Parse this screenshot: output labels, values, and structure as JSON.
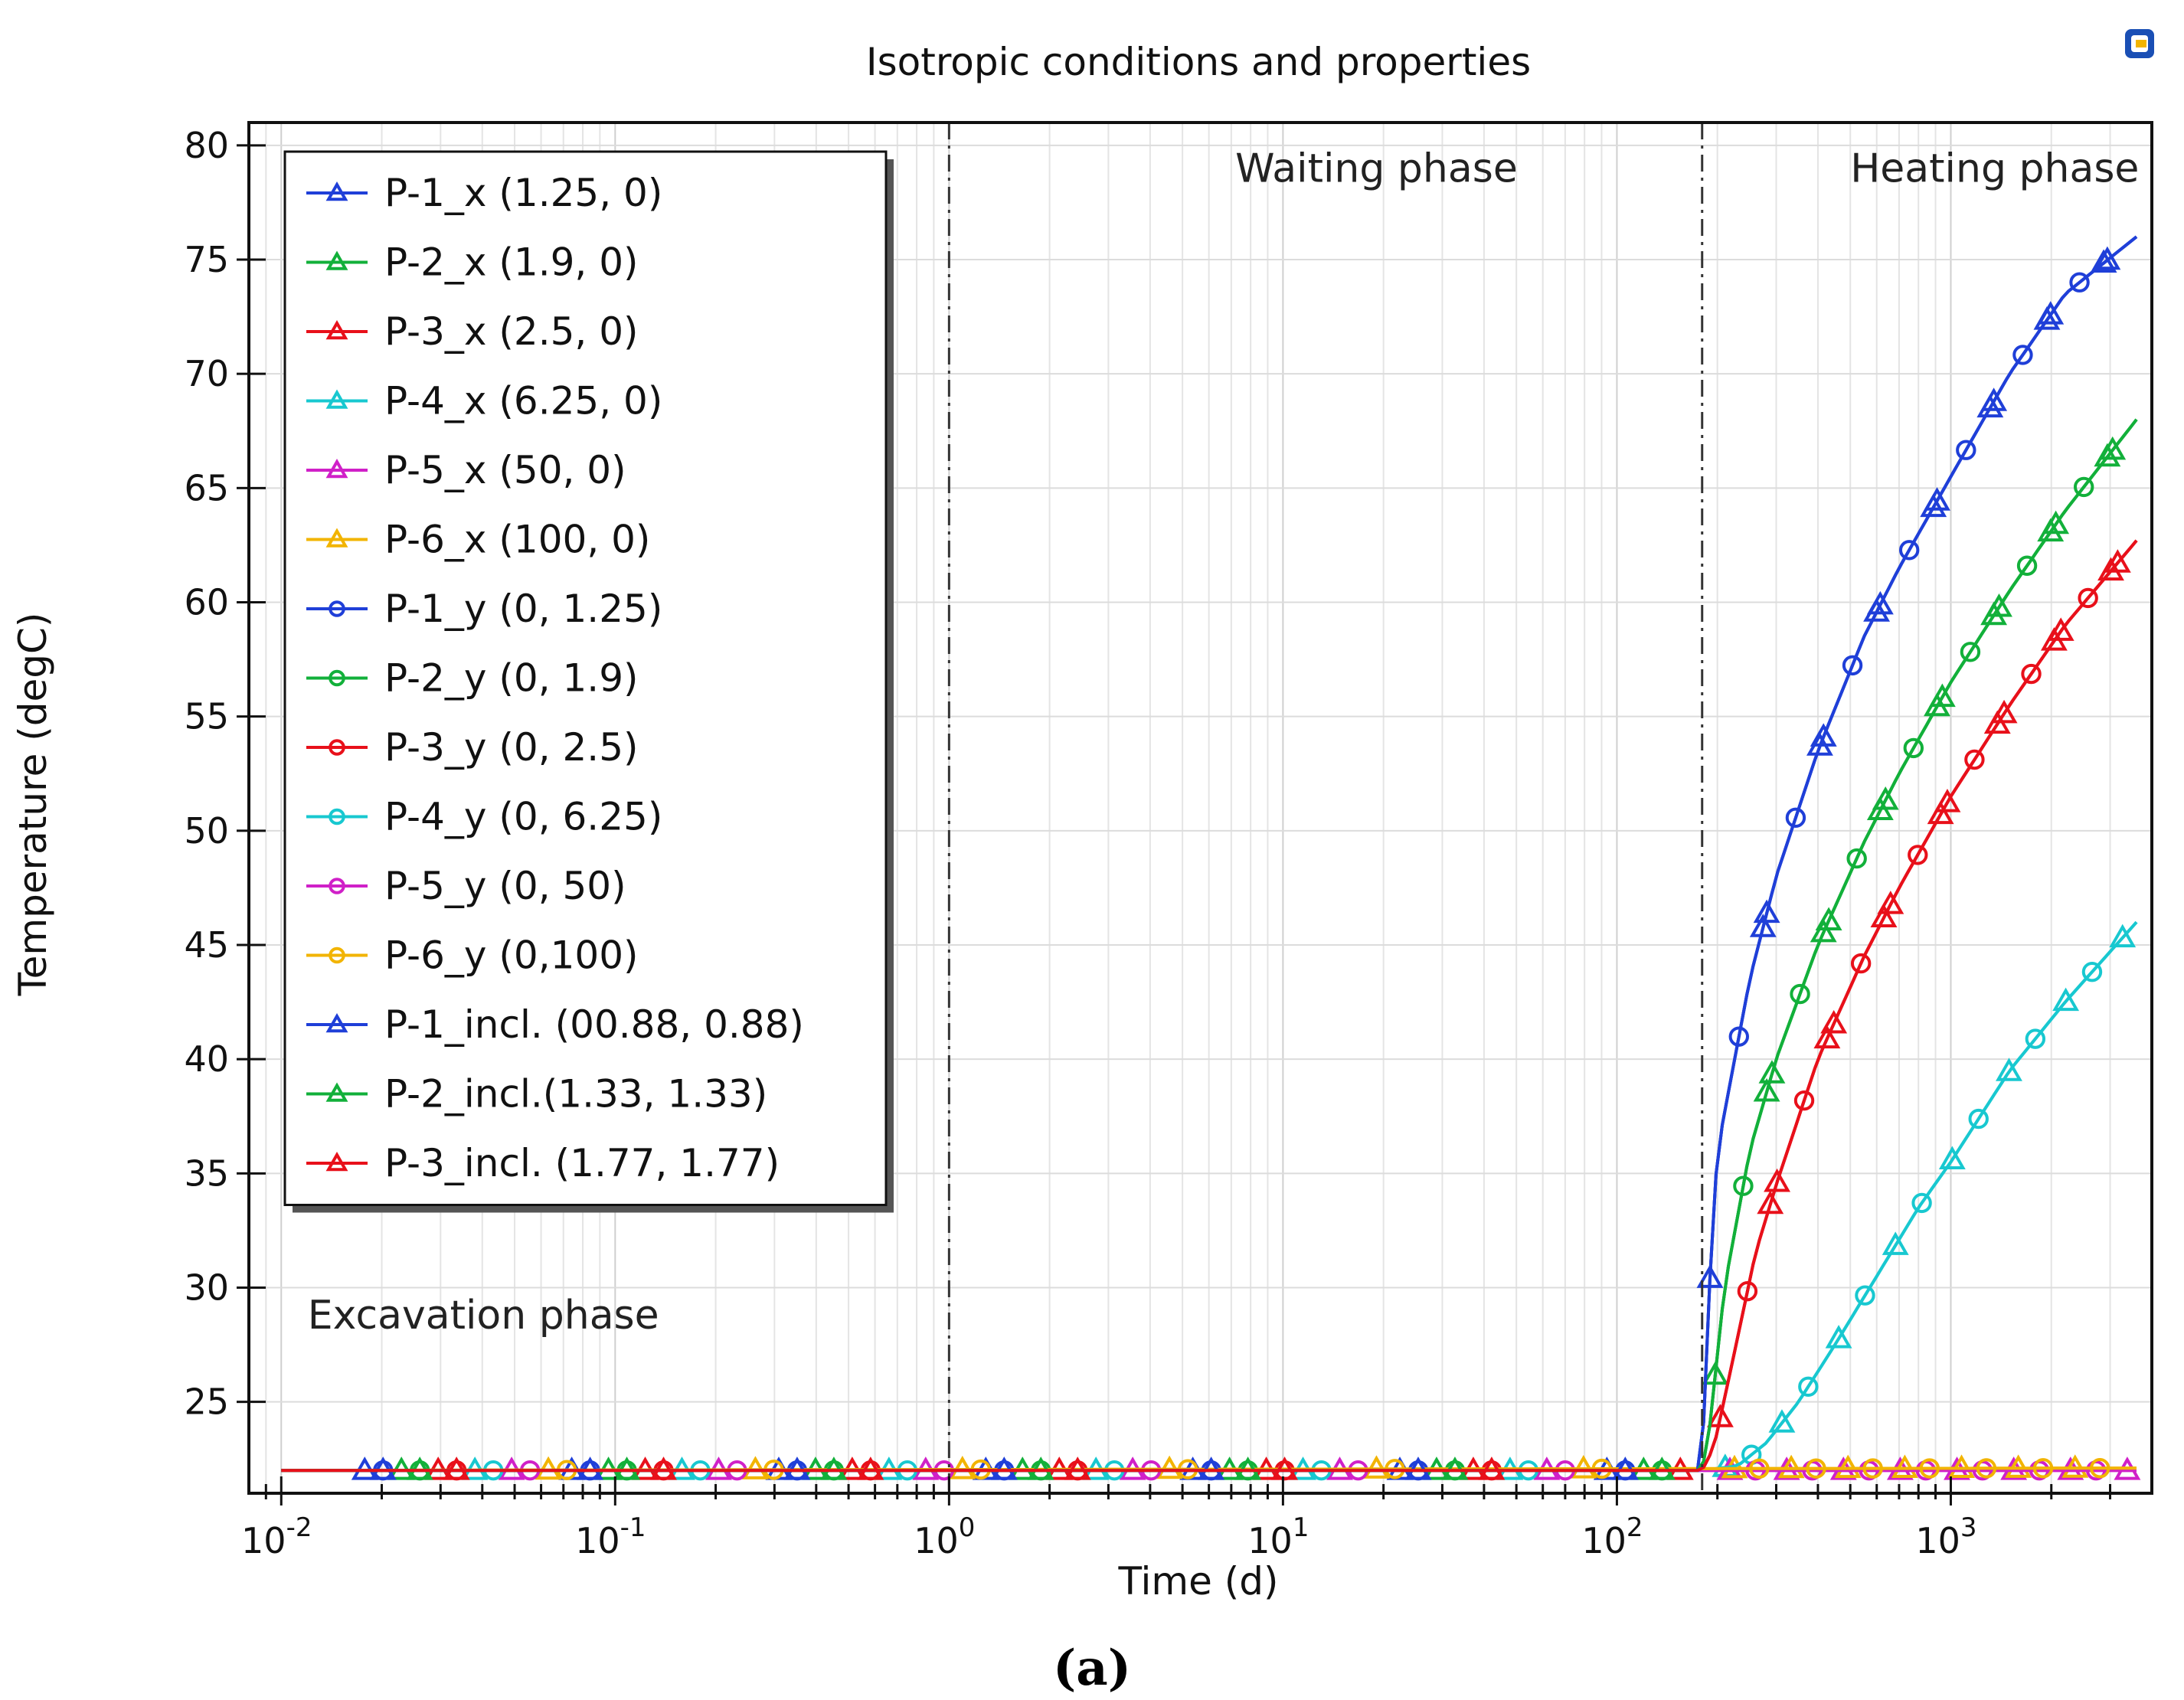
{
  "chart_data": {
    "type": "line",
    "title": "Isotropic conditions and properties",
    "xlabel": "Time (d)",
    "ylabel": "Temperature (degC)",
    "xscale": "log",
    "xlim": [
      0.008,
      4000
    ],
    "ylim": [
      21,
      81
    ],
    "xticks": [
      {
        "value": 0.01,
        "base": "10",
        "exp": "-2"
      },
      {
        "value": 0.1,
        "base": "10",
        "exp": "-1"
      },
      {
        "value": 1,
        "base": "10",
        "exp": "0"
      },
      {
        "value": 10,
        "base": "10",
        "exp": "1"
      },
      {
        "value": 100,
        "base": "10",
        "exp": "2"
      },
      {
        "value": 1000,
        "base": "10",
        "exp": "3"
      }
    ],
    "yticks": [
      25,
      30,
      35,
      40,
      45,
      50,
      55,
      60,
      65,
      70,
      75,
      80
    ],
    "grid": true,
    "legend_position": "top-left",
    "phase_lines": [
      1,
      180
    ],
    "annotations": [
      {
        "text": "Excavation phase",
        "x": 0.012,
        "y": 28.2
      },
      {
        "text": "Waiting phase",
        "x": 7.2,
        "y": 78.4
      },
      {
        "text": "Heating phase",
        "x": 500,
        "y": 78.4
      }
    ],
    "series": [
      {
        "name": "P-1_x (1.25, 0)",
        "color": "#1f3fd8",
        "marker": "triangle",
        "x": [
          0.01,
          180,
          185,
          200,
          250,
          300,
          400,
          550,
          700,
          1000,
          1500,
          2200,
          3600
        ],
        "y": [
          22,
          22,
          27.5,
          36,
          43.5,
          48,
          53.5,
          58.5,
          61.5,
          65.5,
          70,
          73.5,
          76
        ]
      },
      {
        "name": "P-2_x (1.9, 0)",
        "color": "#12b03a",
        "marker": "triangle",
        "x": [
          0.01,
          180,
          190,
          210,
          250,
          300,
          400,
          550,
          700,
          1000,
          1500,
          2200,
          3600
        ],
        "y": [
          22,
          22,
          24,
          30,
          36,
          40,
          45,
          49.5,
          52.5,
          56.5,
          60.5,
          64,
          68
        ]
      },
      {
        "name": "P-3_x (2.5, 0)",
        "color": "#e8101a",
        "marker": "triangle",
        "x": [
          0.01,
          180,
          195,
          220,
          260,
          300,
          400,
          550,
          700,
          1000,
          1500,
          2200,
          3600
        ],
        "y": [
          22,
          22,
          23,
          26.5,
          31.5,
          34.5,
          40,
          44.5,
          47.5,
          51.5,
          55.5,
          59,
          62.7
        ]
      },
      {
        "name": "P-4_x (6.25, 0)",
        "color": "#18c8d0",
        "marker": "triangle",
        "x": [
          0.01,
          180,
          230,
          280,
          350,
          450,
          600,
          800,
          1000,
          1500,
          2200,
          3600
        ],
        "y": [
          22,
          22,
          22.2,
          23.2,
          25,
          27.5,
          30.5,
          33.5,
          35.5,
          39.5,
          42.5,
          46
        ]
      },
      {
        "name": "P-5_x (50, 0)",
        "color": "#d020c8",
        "marker": "triangle",
        "x": [
          0.01,
          3600
        ],
        "y": [
          22,
          22
        ]
      },
      {
        "name": "P-6_x (100, 0)",
        "color": "#f2b400",
        "marker": "triangle",
        "x": [
          0.01,
          3600
        ],
        "y": [
          22,
          22.1
        ]
      },
      {
        "name": "P-1_y (0, 1.25)",
        "color": "#1f3fd8",
        "marker": "circle",
        "x": [
          0.01,
          180,
          185,
          200,
          250,
          300,
          400,
          550,
          700,
          1000,
          1500,
          2200,
          3600
        ],
        "y": [
          22,
          22,
          27.5,
          36,
          43.5,
          48,
          53.5,
          58.5,
          61.5,
          65.5,
          70,
          73.5,
          76
        ]
      },
      {
        "name": "P-2_y (0, 1.9)",
        "color": "#12b03a",
        "marker": "circle",
        "x": [
          0.01,
          180,
          190,
          210,
          250,
          300,
          400,
          550,
          700,
          1000,
          1500,
          2200,
          3600
        ],
        "y": [
          22,
          22,
          24,
          30,
          36,
          40,
          45,
          49.5,
          52.5,
          56.5,
          60.5,
          64,
          68
        ]
      },
      {
        "name": "P-3_y (0, 2.5)",
        "color": "#e8101a",
        "marker": "circle",
        "x": [
          0.01,
          180,
          195,
          220,
          260,
          300,
          400,
          550,
          700,
          1000,
          1500,
          2200,
          3600
        ],
        "y": [
          22,
          22,
          23,
          26.5,
          31.5,
          34.5,
          40,
          44.5,
          47.5,
          51.5,
          55.5,
          59,
          62.7
        ]
      },
      {
        "name": "P-4_y (0, 6.25)",
        "color": "#18c8d0",
        "marker": "circle",
        "x": [
          0.01,
          180,
          230,
          280,
          350,
          450,
          600,
          800,
          1000,
          1500,
          2200,
          3600
        ],
        "y": [
          22,
          22,
          22.2,
          23.2,
          25,
          27.5,
          30.5,
          33.5,
          35.5,
          39.5,
          42.5,
          46
        ]
      },
      {
        "name": "P-5_y (0, 50)",
        "color": "#d020c8",
        "marker": "circle",
        "x": [
          0.01,
          3600
        ],
        "y": [
          22,
          22
        ]
      },
      {
        "name": "P-6_y (0,100)",
        "color": "#f2b400",
        "marker": "circle",
        "x": [
          0.01,
          3600
        ],
        "y": [
          22,
          22.1
        ]
      },
      {
        "name": "P-1_incl. (00.88, 0.88)",
        "color": "#1f3fd8",
        "marker": "triangle",
        "x": [
          0.01,
          180,
          185,
          200,
          250,
          300,
          400,
          550,
          700,
          1000,
          1500,
          2200,
          3600
        ],
        "y": [
          22,
          22,
          27.5,
          36,
          43.5,
          48,
          53.5,
          58.5,
          61.5,
          65.5,
          70,
          73.5,
          76
        ]
      },
      {
        "name": "P-2_incl.(1.33, 1.33)",
        "color": "#12b03a",
        "marker": "triangle",
        "x": [
          0.01,
          180,
          190,
          210,
          250,
          300,
          400,
          550,
          700,
          1000,
          1500,
          2200,
          3600
        ],
        "y": [
          22,
          22,
          24,
          30,
          36,
          40,
          45,
          49.5,
          52.5,
          56.5,
          60.5,
          64,
          68
        ]
      },
      {
        "name": "P-3_incl. (1.77, 1.77)",
        "color": "#e8101a",
        "marker": "triangle",
        "x": [
          0.01,
          180,
          195,
          220,
          260,
          300,
          400,
          550,
          700,
          1000,
          1500,
          2200,
          3600
        ],
        "y": [
          22,
          22,
          23,
          26.5,
          31.5,
          34.5,
          40,
          44.5,
          47.5,
          51.5,
          55.5,
          59,
          62.7
        ]
      }
    ],
    "caption": "(a)"
  }
}
